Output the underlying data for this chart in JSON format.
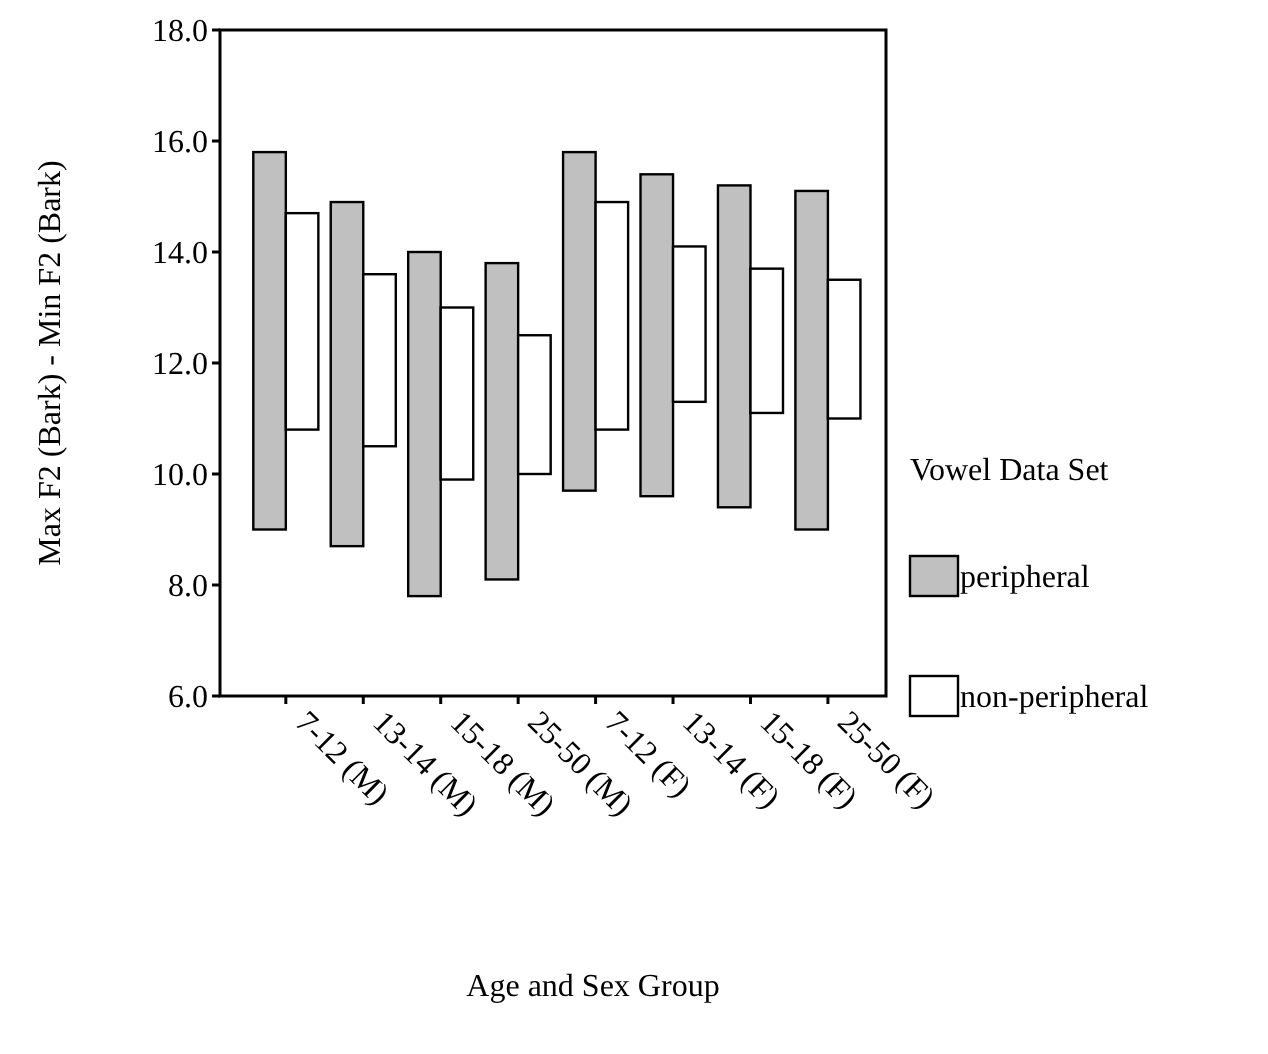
{
  "chart_data": {
    "type": "bar",
    "xlabel": "Age and Sex Group",
    "ylabel": "Max F2 (Bark) -  Min F2 (Bark)",
    "legend_title": "Vowel Data Set",
    "legend": "right",
    "grid": false,
    "categories": [
      "7-12 (M)",
      "13-14 (M)",
      "15-18 (M)",
      "25-50 (M)",
      "7-12 (F)",
      "13-14 (F)",
      "15-18 (F)",
      "25-50 (F)"
    ],
    "series": [
      {
        "name": "peripheral",
        "color": "#c0c0c0",
        "base": [
          9.0,
          8.7,
          7.8,
          8.1,
          9.7,
          9.6,
          9.4,
          9.0
        ],
        "values": [
          6.8,
          6.2,
          6.2,
          5.7,
          6.1,
          5.8,
          5.8,
          6.1
        ]
      },
      {
        "name": "non-peripheral",
        "color": "#ffffff",
        "base": [
          10.8,
          10.5,
          9.9,
          10.0,
          10.8,
          11.3,
          11.1,
          11.0
        ],
        "values": [
          3.9,
          3.1,
          3.1,
          2.5,
          4.1,
          2.8,
          2.6,
          2.5
        ]
      }
    ],
    "ylim": [
      6,
      18
    ],
    "yticks": [
      {
        "value": 6,
        "label": "6.0"
      },
      {
        "value": 8,
        "label": "8.0"
      },
      {
        "value": 10,
        "label": "10.0"
      },
      {
        "value": 12,
        "label": "12.0"
      },
      {
        "value": 14,
        "label": "14.0"
      },
      {
        "value": 16,
        "label": "16.0"
      },
      {
        "value": 18,
        "label": "18.0"
      }
    ]
  }
}
